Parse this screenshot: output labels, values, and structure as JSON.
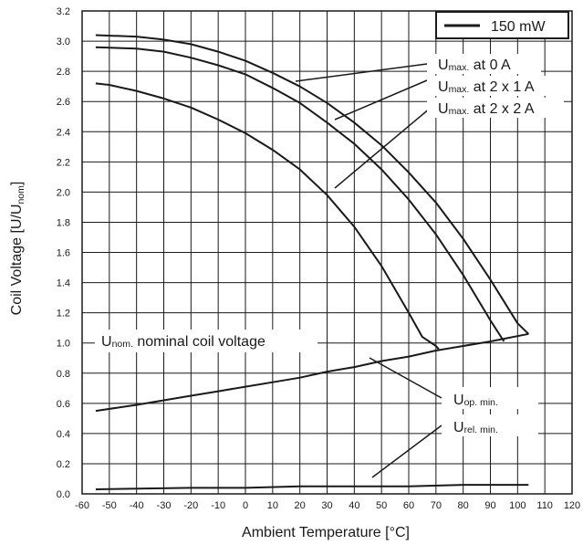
{
  "chart_data": {
    "type": "line",
    "xlabel": "Ambient Temperature [°C]",
    "ylabel": "Coil Voltage [U/U",
    "ylabel_sub": "nom",
    "ylabel_end": "]",
    "xlim": [
      -60,
      120
    ],
    "ylim": [
      0.0,
      3.2
    ],
    "x_ticks": [
      -60,
      -50,
      -40,
      -30,
      -20,
      -10,
      0,
      10,
      20,
      30,
      40,
      50,
      60,
      70,
      80,
      90,
      100,
      110,
      120
    ],
    "y_ticks": [
      0.0,
      0.2,
      0.4,
      0.6,
      0.8,
      1.0,
      1.2,
      1.4,
      1.6,
      1.8,
      2.0,
      2.2,
      2.4,
      2.6,
      2.8,
      3.0,
      3.2
    ],
    "grid": true,
    "legend": {
      "position": "top-right",
      "entries": [
        "150 mW"
      ]
    },
    "series": [
      {
        "label_main": "U",
        "label_sub": "max.",
        "label_rest": " at 0 A",
        "x": [
          -55,
          -40,
          -30,
          -20,
          -10,
          0,
          10,
          20,
          30,
          40,
          50,
          60,
          70,
          80,
          90,
          100,
          104
        ],
        "y": [
          3.04,
          3.03,
          3.01,
          2.98,
          2.93,
          2.87,
          2.79,
          2.7,
          2.59,
          2.46,
          2.31,
          2.13,
          1.93,
          1.69,
          1.42,
          1.13,
          1.06
        ]
      },
      {
        "label_main": "U",
        "label_sub": "max.",
        "label_rest": " at 2 x 1 A",
        "x": [
          -55,
          -40,
          -30,
          -20,
          -10,
          0,
          10,
          20,
          30,
          40,
          50,
          60,
          70,
          80,
          90,
          95
        ],
        "y": [
          2.96,
          2.95,
          2.93,
          2.89,
          2.84,
          2.78,
          2.69,
          2.59,
          2.46,
          2.32,
          2.15,
          1.95,
          1.72,
          1.45,
          1.15,
          1.01
        ]
      },
      {
        "label_main": "U",
        "label_sub": "max.",
        "label_rest": " at 2 x 2 A",
        "x": [
          -55,
          -50,
          -40,
          -30,
          -20,
          -10,
          0,
          10,
          20,
          30,
          40,
          50,
          60,
          65,
          70,
          71
        ],
        "y": [
          2.72,
          2.71,
          2.67,
          2.62,
          2.56,
          2.48,
          2.39,
          2.28,
          2.15,
          1.98,
          1.77,
          1.51,
          1.2,
          1.04,
          0.98,
          0.96
        ]
      },
      {
        "label_main": "U",
        "label_sub": "op. min.",
        "label_rest": "",
        "x": [
          -55,
          -40,
          -30,
          -20,
          -10,
          0,
          10,
          20,
          30,
          40,
          50,
          60,
          70,
          80,
          90,
          104
        ],
        "y": [
          0.55,
          0.59,
          0.62,
          0.65,
          0.68,
          0.71,
          0.74,
          0.77,
          0.81,
          0.84,
          0.88,
          0.91,
          0.95,
          0.98,
          1.01,
          1.06
        ]
      },
      {
        "label_main": "U",
        "label_sub": "rel. min.",
        "label_rest": "",
        "x": [
          -55,
          -20,
          0,
          20,
          40,
          60,
          80,
          104
        ],
        "y": [
          0.03,
          0.04,
          0.04,
          0.05,
          0.05,
          0.05,
          0.06,
          0.06
        ]
      }
    ],
    "annotations": [
      {
        "label_main": "U",
        "label_sub": "nom.",
        "label_rest": " nominal coil voltage"
      }
    ]
  }
}
